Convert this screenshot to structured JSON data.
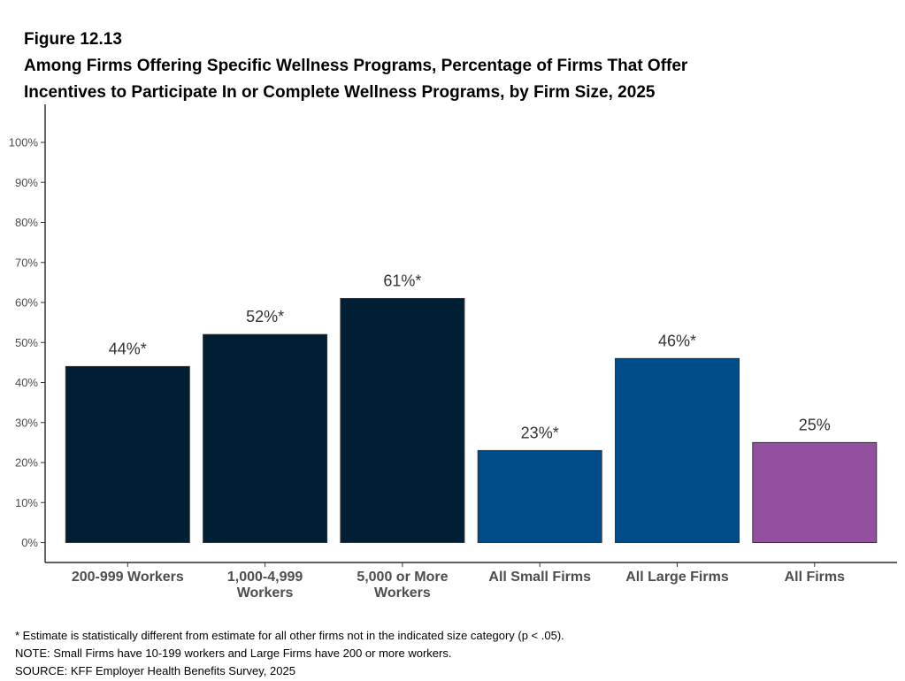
{
  "figure": {
    "number": "Figure 12.13",
    "title_line1": "Among Firms Offering Specific Wellness Programs, Percentage of Firms That Offer",
    "title_line2": "Incentives to Participate In or Complete Wellness Programs, by Firm Size, 2025"
  },
  "chart_data": {
    "type": "bar",
    "title": "Among Firms Offering Specific Wellness Programs, Percentage of Firms That Offer Incentives to Participate In or Complete Wellness Programs, by Firm Size, 2025",
    "xlabel": "",
    "ylabel": "",
    "ylim": [
      0,
      100
    ],
    "grid": false,
    "legend": "none",
    "y_ticks": [
      "0%",
      "10%",
      "20%",
      "30%",
      "40%",
      "50%",
      "60%",
      "70%",
      "80%",
      "90%",
      "100%"
    ],
    "categories": [
      [
        "200-999 Workers"
      ],
      [
        "1,000-4,999",
        "Workers"
      ],
      [
        "5,000 or More",
        "Workers"
      ],
      [
        "All Small Firms"
      ],
      [
        "All Large Firms"
      ],
      [
        "All Firms"
      ]
    ],
    "values": [
      44,
      52,
      61,
      23,
      46,
      25
    ],
    "data_labels": [
      "44%*",
      "52%*",
      "61%*",
      "23%*",
      "46%*",
      "25%"
    ],
    "colors": [
      "#001f35",
      "#001f35",
      "#001f35",
      "#004c88",
      "#004c88",
      "#9350a0"
    ]
  },
  "footer": {
    "asterisk_note": "* Estimate is statistically different from estimate for all other firms not in the indicated size category (p < .05).",
    "note": "NOTE: Small Firms have 10-199 workers and Large Firms have 200 or more workers.",
    "source": "SOURCE: KFF Employer Health Benefits Survey, 2025"
  }
}
